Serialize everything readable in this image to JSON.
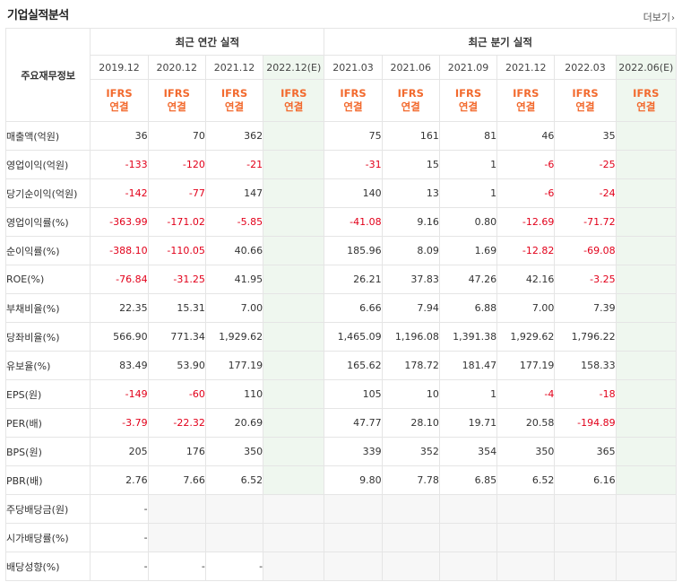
{
  "title": "기업실적분석",
  "more_label": "더보기",
  "more_icon": "chevron-right-icon",
  "header": {
    "annual_label": "최근 연간 실적",
    "quarter_label": "최근 분기 실적",
    "row_header_label": "주요재무정보",
    "annual_periods": [
      "2019.12",
      "2020.12",
      "2021.12",
      "2022.12(E)"
    ],
    "quarter_periods": [
      "2021.03",
      "2021.06",
      "2021.09",
      "2021.12",
      "2022.03",
      "2022.06(E)"
    ],
    "ifrs_top": "IFRS",
    "ifrs_bottom": "연결"
  },
  "colors": {
    "negative": "#e2001a",
    "ifrs": "#f26a2e",
    "estimate_bg": "#eff7ef",
    "empty_bg": "#f7f7f7"
  },
  "rows": [
    {
      "label": "매출액(억원)",
      "values": [
        "36",
        "70",
        "362",
        "",
        "75",
        "161",
        "81",
        "46",
        "35",
        ""
      ]
    },
    {
      "label": "영업이익(억원)",
      "values": [
        "-133",
        "-120",
        "-21",
        "",
        "-31",
        "15",
        "1",
        "-6",
        "-25",
        ""
      ]
    },
    {
      "label": "당기순이익(억원)",
      "values": [
        "-142",
        "-77",
        "147",
        "",
        "140",
        "13",
        "1",
        "-6",
        "-24",
        ""
      ]
    },
    {
      "label": "영업이익률(%)",
      "values": [
        "-363.99",
        "-171.02",
        "-5.85",
        "",
        "-41.08",
        "9.16",
        "0.80",
        "-12.69",
        "-71.72",
        ""
      ]
    },
    {
      "label": "순이익률(%)",
      "values": [
        "-388.10",
        "-110.05",
        "40.66",
        "",
        "185.96",
        "8.09",
        "1.69",
        "-12.82",
        "-69.08",
        ""
      ]
    },
    {
      "label": "ROE(%)",
      "values": [
        "-76.84",
        "-31.25",
        "41.95",
        "",
        "26.21",
        "37.83",
        "47.26",
        "42.16",
        "-3.25",
        ""
      ]
    },
    {
      "label": "부채비율(%)",
      "values": [
        "22.35",
        "15.31",
        "7.00",
        "",
        "6.66",
        "7.94",
        "6.88",
        "7.00",
        "7.39",
        ""
      ]
    },
    {
      "label": "당좌비율(%)",
      "values": [
        "566.90",
        "771.34",
        "1,929.62",
        "",
        "1,465.09",
        "1,196.08",
        "1,391.38",
        "1,929.62",
        "1,796.22",
        ""
      ]
    },
    {
      "label": "유보율(%)",
      "values": [
        "83.49",
        "53.90",
        "177.19",
        "",
        "165.62",
        "178.72",
        "181.47",
        "177.19",
        "158.33",
        ""
      ]
    },
    {
      "label": "EPS(원)",
      "values": [
        "-149",
        "-60",
        "110",
        "",
        "105",
        "10",
        "1",
        "-4",
        "-18",
        ""
      ]
    },
    {
      "label": "PER(배)",
      "values": [
        "-3.79",
        "-22.32",
        "20.69",
        "",
        "47.77",
        "28.10",
        "19.71",
        "20.58",
        "-194.89",
        ""
      ]
    },
    {
      "label": "BPS(원)",
      "values": [
        "205",
        "176",
        "350",
        "",
        "339",
        "352",
        "354",
        "350",
        "365",
        ""
      ]
    },
    {
      "label": "PBR(배)",
      "values": [
        "2.76",
        "7.66",
        "6.52",
        "",
        "9.80",
        "7.78",
        "6.85",
        "6.52",
        "6.16",
        ""
      ]
    },
    {
      "label": "주당배당금(원)",
      "values": [
        "-",
        null,
        null,
        null,
        null,
        null,
        null,
        null,
        null,
        null
      ]
    },
    {
      "label": "시가배당률(%)",
      "values": [
        "-",
        null,
        null,
        null,
        null,
        null,
        null,
        null,
        null,
        null
      ]
    },
    {
      "label": "배당성향(%)",
      "values": [
        "-",
        "-",
        "-",
        null,
        null,
        null,
        null,
        null,
        null,
        null
      ]
    }
  ]
}
